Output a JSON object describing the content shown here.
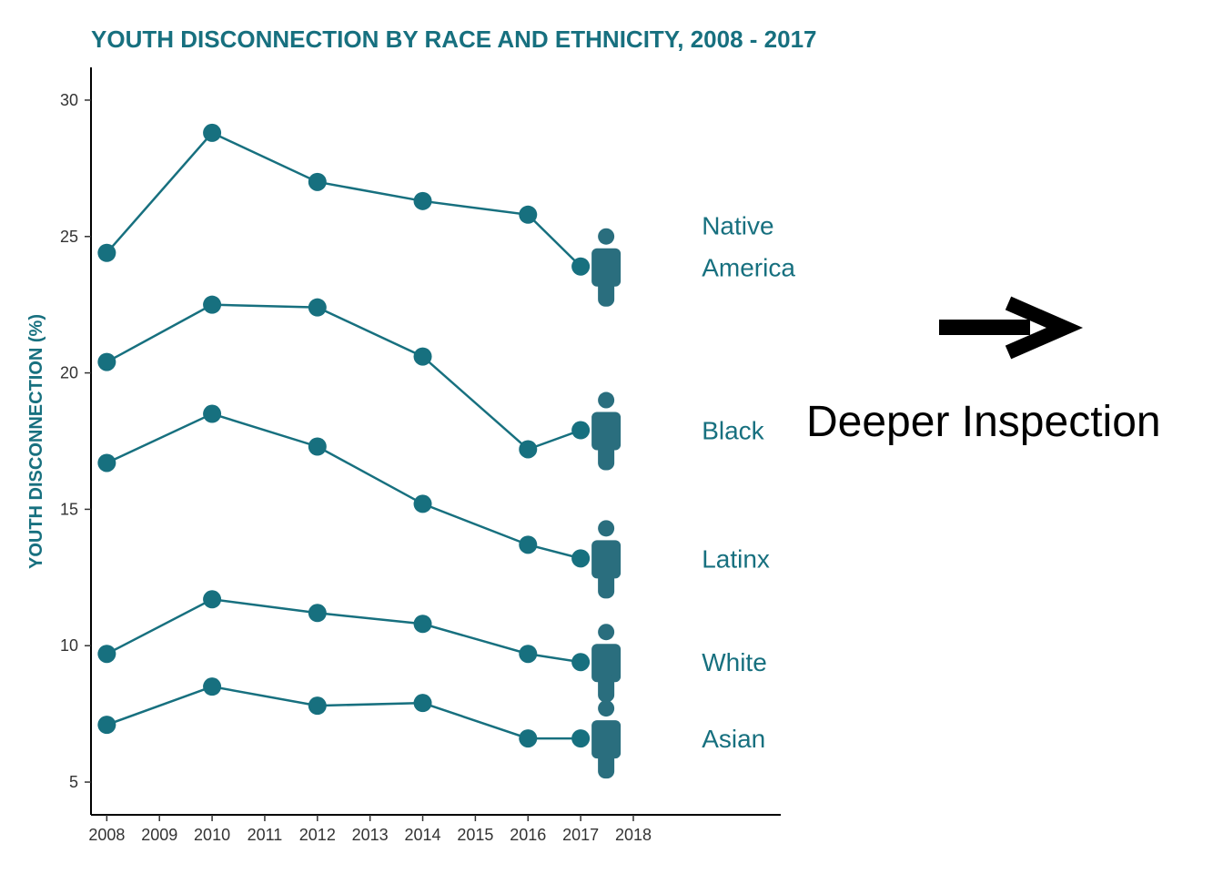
{
  "chart_data": {
    "type": "line",
    "title": "YOUTH DISCONNECTION BY RACE AND ETHNICITY, 2008 - 2017",
    "ylabel": "YOUTH DISCONNECTION (%)",
    "xlabel": "",
    "x_ticks": [
      "2008",
      "2009",
      "2010",
      "2011",
      "2012",
      "2013",
      "2014",
      "2015",
      "2016",
      "2017",
      "2018"
    ],
    "y_ticks": [
      5,
      10,
      15,
      20,
      25,
      30
    ],
    "xlim": [
      2007.7,
      2020.8
    ],
    "ylim": [
      3.8,
      31.2
    ],
    "grid": false,
    "x": [
      2008,
      2010,
      2012,
      2014,
      2016,
      2017
    ],
    "series": [
      {
        "label_lines": [
          "Native",
          "America"
        ],
        "values": [
          24.4,
          28.8,
          27.0,
          26.3,
          25.8,
          23.9
        ]
      },
      {
        "label_lines": [
          "Black"
        ],
        "values": [
          20.4,
          22.5,
          22.4,
          20.6,
          17.2,
          17.9
        ]
      },
      {
        "label_lines": [
          "Latinx"
        ],
        "values": [
          16.7,
          18.5,
          17.3,
          15.2,
          13.7,
          13.2
        ]
      },
      {
        "label_lines": [
          "White"
        ],
        "values": [
          9.7,
          11.7,
          11.2,
          10.8,
          9.7,
          9.4
        ]
      },
      {
        "label_lines": [
          "Asian"
        ],
        "values": [
          7.1,
          8.5,
          7.8,
          7.9,
          6.6,
          6.6
        ]
      }
    ],
    "colors": {
      "line": "#17707f",
      "icon": "#2a6e7e",
      "axis": "#000000"
    },
    "icon": "person-icon"
  },
  "annotation": {
    "text": "Deeper Inspection",
    "icon": "right-arrow-icon"
  }
}
